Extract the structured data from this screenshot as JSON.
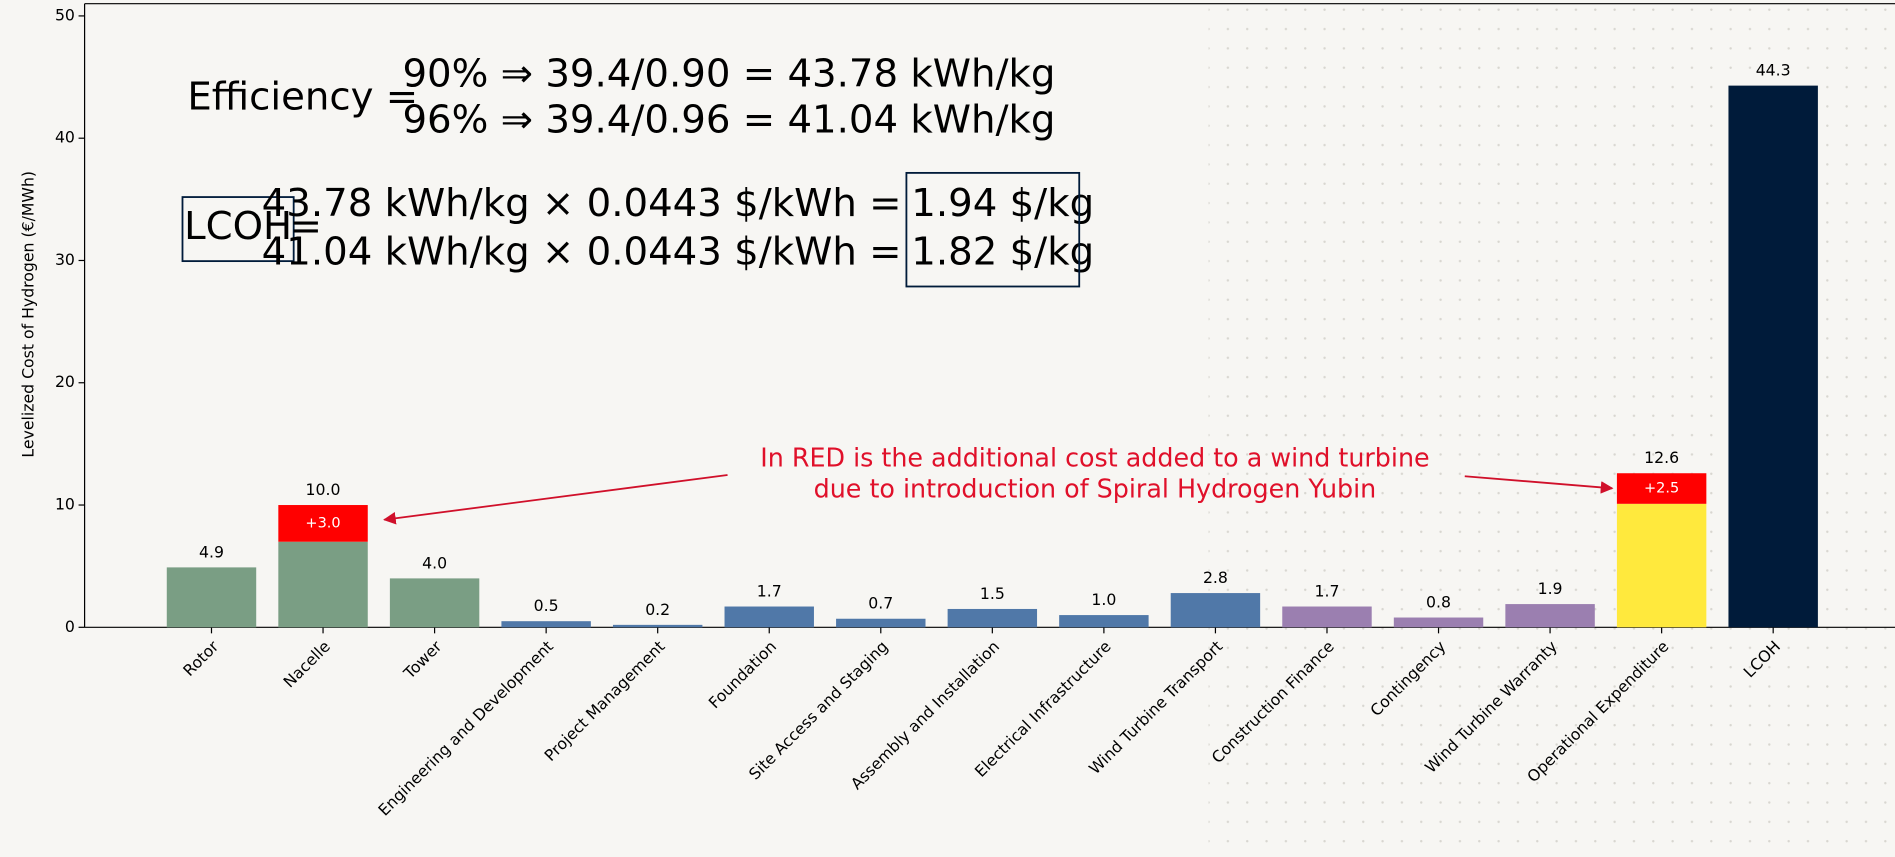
{
  "chart_data": {
    "type": "bar",
    "y_label": "Levelized Cost of Hydrogen (€/MWh)",
    "categories": [
      "Rotor",
      "Nacelle",
      "Tower",
      "Engineering and Development",
      "Project Management",
      "Foundation",
      "Site Access and Staging",
      "Assembly and Installation",
      "Electrical Infrastructure",
      "Wind Turbine Transport",
      "Construction Finance",
      "Contingency",
      "Wind Turbine Warranty",
      "Operational Expenditure",
      "LCOH"
    ],
    "series": [
      {
        "colors": [
          "#7a9e84",
          "#7a9e84",
          "#7a9e84",
          "#5078a8",
          "#5078a8",
          "#5078a8",
          "#5078a8",
          "#5078a8",
          "#5078a8",
          "#5078a8",
          "#9b7fb0",
          "#9b7fb0",
          "#9b7fb0",
          "#ffe93d",
          "#001b3a"
        ],
        "values": [
          4.9,
          7.0,
          4.0,
          0.5,
          0.2,
          1.7,
          0.7,
          1.5,
          1.0,
          2.8,
          1.7,
          0.8,
          1.9,
          10.1,
          44.3
        ]
      },
      {
        "color": "#ff0000",
        "values": [
          null,
          3.0,
          null,
          null,
          null,
          null,
          null,
          null,
          null,
          null,
          null,
          null,
          null,
          2.5,
          null
        ],
        "value_labels": [
          null,
          "+3.0",
          null,
          null,
          null,
          null,
          null,
          null,
          null,
          null,
          null,
          null,
          null,
          "+2.5",
          null
        ]
      }
    ],
    "total_labels": [
      "4.9",
      "10.0",
      "4.0",
      "0.5",
      "0.2",
      "1.7",
      "0.7",
      "1.5",
      "1.0",
      "2.8",
      "1.7",
      "0.8",
      "1.9",
      "12.6",
      "44.3"
    ],
    "ylim": [
      0,
      51
    ],
    "yticks": [
      0,
      10,
      20,
      30,
      40,
      50
    ],
    "annotations": {
      "efficiency_label": "Efficiency =",
      "efficiency_lines": [
        "90% ⇒ 39.4/0.90 = 43.78 kWh/kg",
        "96% ⇒ 39.4/0.96 = 41.04 kWh/kg"
      ],
      "lcoh_label": "LCOH",
      "equals": "=",
      "lcoh_lines": [
        {
          "expr": "43.78 kWh/kg × 0.0443 $/kWh =",
          "result": "1.94 $/kg"
        },
        {
          "expr": "41.04 kWh/kg × 0.0443 $/kWh =",
          "result": "1.82 $/kg"
        }
      ],
      "note_lines": [
        "In RED is the additional cost added to a wind turbine",
        "due to introduction of Spiral Hydrogen Yubin"
      ]
    }
  }
}
